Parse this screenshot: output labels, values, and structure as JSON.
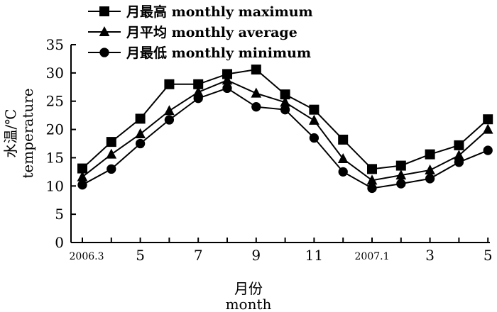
{
  "chart_data": {
    "type": "line",
    "xlabel": "月份",
    "xlabel_en": "month",
    "ylabel": "水温/℃",
    "ylabel_en": "temperature",
    "ylim": [
      0,
      35
    ],
    "yticks": [
      0,
      5,
      10,
      15,
      20,
      25,
      30,
      35
    ],
    "x_tick_labels": [
      "2006.3",
      "5",
      "7",
      "9",
      "11",
      "2007.1",
      "3",
      "5"
    ],
    "x_tick_small": [
      true,
      false,
      false,
      false,
      false,
      true,
      false,
      false
    ],
    "grid": false,
    "legend_position": "top-left",
    "x": [
      "2006.3",
      "2006.4",
      "2006.5",
      "2006.6",
      "2006.7",
      "2006.8",
      "2006.9",
      "2006.10",
      "2006.11",
      "2006.12",
      "2007.1",
      "2007.2",
      "2007.3",
      "2007.4",
      "2007.5"
    ],
    "series": [
      {
        "name": "月最高 monthly maximum",
        "marker": "square",
        "values": [
          13.1,
          17.8,
          21.9,
          28.0,
          28.0,
          29.8,
          30.6,
          26.2,
          23.5,
          18.2,
          13.0,
          13.6,
          15.6,
          17.2,
          21.8
        ]
      },
      {
        "name": "月平均 monthly average",
        "marker": "triangle",
        "values": [
          11.6,
          15.6,
          19.2,
          23.3,
          26.6,
          28.7,
          26.4,
          24.8,
          21.6,
          14.8,
          11.0,
          11.9,
          12.8,
          15.4,
          20.0
        ]
      },
      {
        "name": "月最低 monthly minimum",
        "marker": "circle",
        "values": [
          10.2,
          13.0,
          17.5,
          21.7,
          25.5,
          27.3,
          24.0,
          23.5,
          18.5,
          12.5,
          9.6,
          10.4,
          11.3,
          14.2,
          16.3
        ]
      }
    ]
  }
}
